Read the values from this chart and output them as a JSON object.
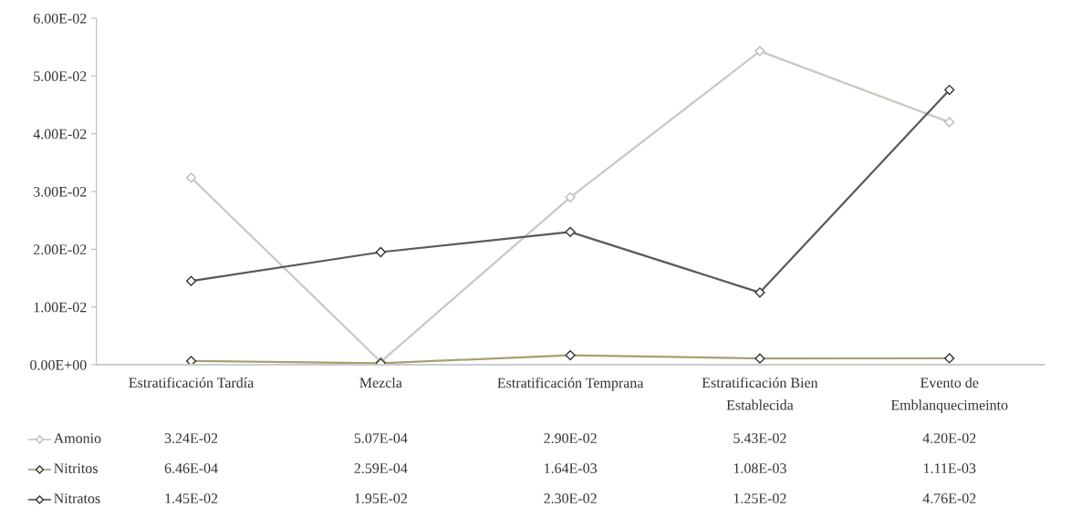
{
  "chart_data": {
    "type": "line",
    "categories": [
      "Estratificación Tardía",
      "Mezcla",
      "Estratificación Temprana",
      "Estratificación Bien\nEstablecida",
      "Evento de\nEmblanquecimeinto"
    ],
    "series": [
      {
        "name": "Amonio",
        "color": "#c9c9c2",
        "values": [
          0.0324,
          0.000507,
          0.029,
          0.0543,
          0.042
        ],
        "value_labels": [
          "3.24E-02",
          "5.07E-04",
          "2.90E-02",
          "5.43E-02",
          "4.20E-02"
        ]
      },
      {
        "name": "Nitritos",
        "color": "#a8a070",
        "values": [
          0.000646,
          0.000259,
          0.00164,
          0.00108,
          0.00111
        ],
        "value_labels": [
          "6.46E-04",
          "2.59E-04",
          "1.64E-03",
          "1.08E-03",
          "1.11E-03"
        ]
      },
      {
        "name": "Nitratos",
        "color": "#5a5a5a",
        "values": [
          0.0145,
          0.0195,
          0.023,
          0.0125,
          0.0476
        ],
        "value_labels": [
          "1.45E-02",
          "1.95E-02",
          "2.30E-02",
          "1.25E-02",
          "4.76E-02"
        ]
      }
    ],
    "ylim": [
      0,
      0.06
    ],
    "yticks": [
      {
        "value": 0,
        "label": "0.00E+00"
      },
      {
        "value": 0.01,
        "label": "1.00E-02"
      },
      {
        "value": 0.02,
        "label": "2.00E-02"
      },
      {
        "value": 0.03,
        "label": "3.00E-02"
      },
      {
        "value": 0.04,
        "label": "4.00E-02"
      },
      {
        "value": 0.05,
        "label": "5.00E-02"
      },
      {
        "value": 0.06,
        "label": "6.00E-02"
      }
    ],
    "marker": "diamond",
    "line_style": "solid",
    "grid": false,
    "legend": "bottom"
  }
}
